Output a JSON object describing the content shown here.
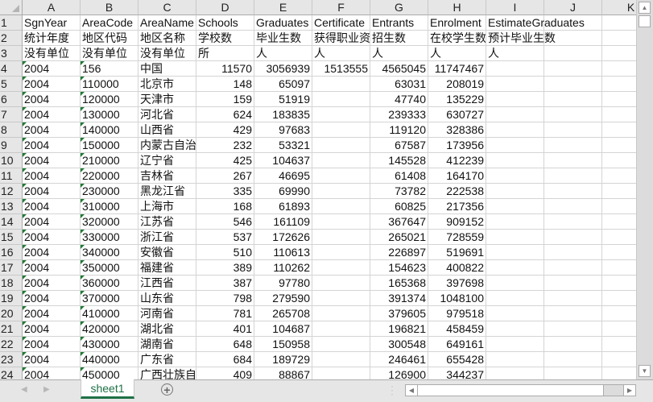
{
  "columns": [
    "A",
    "B",
    "C",
    "D",
    "E",
    "F",
    "G",
    "H",
    "I",
    "J",
    "K"
  ],
  "sheet_tabs": [
    "sheet1"
  ],
  "active_tab": "sheet1",
  "colors": {
    "accent": "#1e7145",
    "text_number_flag": "#1e7a34"
  },
  "rows": [
    [
      "SgnYear",
      "AreaCode",
      "AreaName",
      "Schools",
      "Graduates",
      "Certificate",
      "Entrants",
      "Enrolment",
      "EstimateGraduates",
      "",
      ""
    ],
    [
      "统计年度",
      "地区代码",
      "地区名称",
      "学校数",
      "毕业生数",
      "获得职业资",
      "招生数",
      "在校学生数",
      "预计毕业生数",
      "",
      ""
    ],
    [
      "没有单位",
      "没有单位",
      "没有单位",
      "所",
      "人",
      "人",
      "人",
      "人",
      "人",
      "",
      ""
    ],
    [
      "2004",
      "156",
      "中国",
      "11570",
      "3056939",
      "1513555",
      "4565045",
      "11747467",
      "",
      "",
      ""
    ],
    [
      "2004",
      "110000",
      "北京市",
      "148",
      "65097",
      "",
      "63031",
      "208019",
      "",
      "",
      ""
    ],
    [
      "2004",
      "120000",
      "天津市",
      "159",
      "51919",
      "",
      "47740",
      "135229",
      "",
      "",
      ""
    ],
    [
      "2004",
      "130000",
      "河北省",
      "624",
      "183835",
      "",
      "239333",
      "630727",
      "",
      "",
      ""
    ],
    [
      "2004",
      "140000",
      "山西省",
      "429",
      "97683",
      "",
      "119120",
      "328386",
      "",
      "",
      ""
    ],
    [
      "2004",
      "150000",
      "内蒙古自治区",
      "232",
      "53321",
      "",
      "67587",
      "173956",
      "",
      "",
      ""
    ],
    [
      "2004",
      "210000",
      "辽宁省",
      "425",
      "104637",
      "",
      "145528",
      "412239",
      "",
      "",
      ""
    ],
    [
      "2004",
      "220000",
      "吉林省",
      "267",
      "46695",
      "",
      "61408",
      "164170",
      "",
      "",
      ""
    ],
    [
      "2004",
      "230000",
      "黑龙江省",
      "335",
      "69990",
      "",
      "73782",
      "222538",
      "",
      "",
      ""
    ],
    [
      "2004",
      "310000",
      "上海市",
      "168",
      "61893",
      "",
      "60825",
      "217356",
      "",
      "",
      ""
    ],
    [
      "2004",
      "320000",
      "江苏省",
      "546",
      "161109",
      "",
      "367647",
      "909152",
      "",
      "",
      ""
    ],
    [
      "2004",
      "330000",
      "浙江省",
      "537",
      "172626",
      "",
      "265021",
      "728559",
      "",
      "",
      ""
    ],
    [
      "2004",
      "340000",
      "安徽省",
      "510",
      "110613",
      "",
      "226897",
      "519691",
      "",
      "",
      ""
    ],
    [
      "2004",
      "350000",
      "福建省",
      "389",
      "110262",
      "",
      "154623",
      "400822",
      "",
      "",
      ""
    ],
    [
      "2004",
      "360000",
      "江西省",
      "387",
      "97780",
      "",
      "165368",
      "397698",
      "",
      "",
      ""
    ],
    [
      "2004",
      "370000",
      "山东省",
      "798",
      "279590",
      "",
      "391374",
      "1048100",
      "",
      "",
      ""
    ],
    [
      "2004",
      "410000",
      "河南省",
      "781",
      "265708",
      "",
      "379605",
      "979518",
      "",
      "",
      ""
    ],
    [
      "2004",
      "420000",
      "湖北省",
      "401",
      "104687",
      "",
      "196821",
      "458459",
      "",
      "",
      ""
    ],
    [
      "2004",
      "430000",
      "湖南省",
      "648",
      "150958",
      "",
      "300548",
      "649161",
      "",
      "",
      ""
    ],
    [
      "2004",
      "440000",
      "广东省",
      "684",
      "189729",
      "",
      "246461",
      "655428",
      "",
      "",
      ""
    ],
    [
      "2004",
      "450000",
      "广西壮族自治区",
      "409",
      "88867",
      "",
      "126900",
      "344237",
      "",
      "",
      ""
    ]
  ]
}
